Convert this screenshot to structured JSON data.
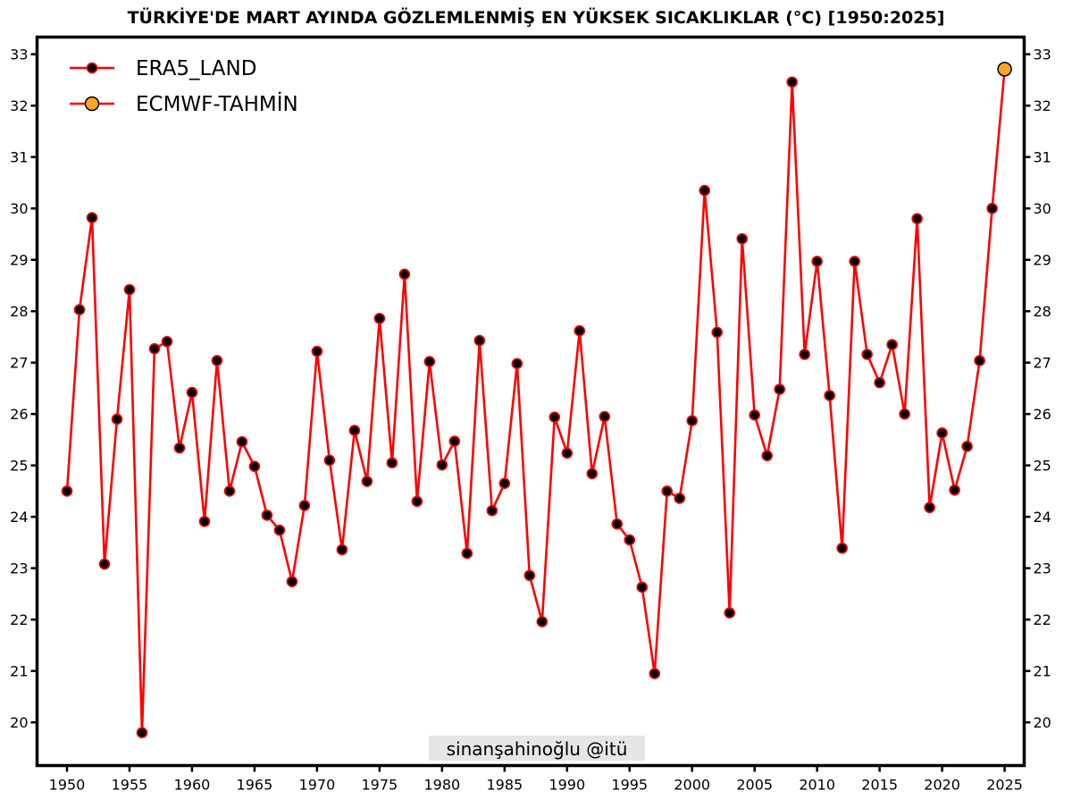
{
  "chart_data": {
    "type": "line",
    "title": "TÜRKİYE'DE MART AYINDA GÖZLEMLENMİŞ EN YÜKSEK SICAKLIKLAR (°C) [1950:2025]",
    "xlabel": "",
    "ylabel": "",
    "xlim": [
      1949.5,
      2026.5
    ],
    "ylim": [
      19.2,
      33.35
    ],
    "x_ticks": [
      1950,
      1955,
      1960,
      1965,
      1970,
      1975,
      1980,
      1985,
      1990,
      1995,
      2000,
      2005,
      2010,
      2015,
      2020,
      2025
    ],
    "y_ticks": [
      20,
      21,
      22,
      23,
      24,
      25,
      26,
      27,
      28,
      29,
      30,
      31,
      32,
      33
    ],
    "y_axis_sides": [
      "left",
      "right"
    ],
    "grid": false,
    "legend": {
      "placement": "top-left"
    },
    "line_color": "#ff0000",
    "series": [
      {
        "name": "ERA5_LAND",
        "marker_color": "#000000",
        "x": [
          1950,
          1951,
          1952,
          1953,
          1954,
          1955,
          1956,
          1957,
          1958,
          1959,
          1960,
          1961,
          1962,
          1963,
          1964,
          1965,
          1966,
          1967,
          1968,
          1969,
          1970,
          1971,
          1972,
          1973,
          1974,
          1975,
          1976,
          1977,
          1978,
          1979,
          1980,
          1981,
          1982,
          1983,
          1984,
          1985,
          1986,
          1987,
          1988,
          1989,
          1990,
          1991,
          1992,
          1993,
          1994,
          1995,
          1996,
          1997,
          1998,
          1999,
          2000,
          2001,
          2002,
          2003,
          2004,
          2005,
          2006,
          2007,
          2008,
          2009,
          2010,
          2011,
          2012,
          2013,
          2014,
          2015,
          2016,
          2017,
          2018,
          2019,
          2020,
          2021,
          2022,
          2023,
          2024
        ],
        "values": [
          24.5,
          28.03,
          29.82,
          23.08,
          25.9,
          28.42,
          19.8,
          27.27,
          27.41,
          25.34,
          26.42,
          23.91,
          27.04,
          24.5,
          25.46,
          24.98,
          24.03,
          23.74,
          22.74,
          24.22,
          27.22,
          25.1,
          23.36,
          25.68,
          24.69,
          27.86,
          25.05,
          28.72,
          24.3,
          27.02,
          25.01,
          25.47,
          23.29,
          27.43,
          24.12,
          24.65,
          26.98,
          22.86,
          21.96,
          25.94,
          25.24,
          27.62,
          24.84,
          25.95,
          23.86,
          23.55,
          22.63,
          20.95,
          24.5,
          24.36,
          25.87,
          30.35,
          27.59,
          22.13,
          29.41,
          25.98,
          25.19,
          26.48,
          32.46,
          27.16,
          28.97,
          26.36,
          23.39,
          28.97,
          27.16,
          26.61,
          27.35,
          26.0,
          29.8,
          24.18,
          25.63,
          24.52,
          25.37,
          27.04,
          30.0
        ]
      },
      {
        "name": "ECMWF-TAHMİN",
        "marker_color": "#f5a623",
        "x": [
          2025
        ],
        "values": [
          32.71
        ]
      }
    ]
  },
  "watermark": {
    "text": "sinanşahinoğlu @itü"
  }
}
